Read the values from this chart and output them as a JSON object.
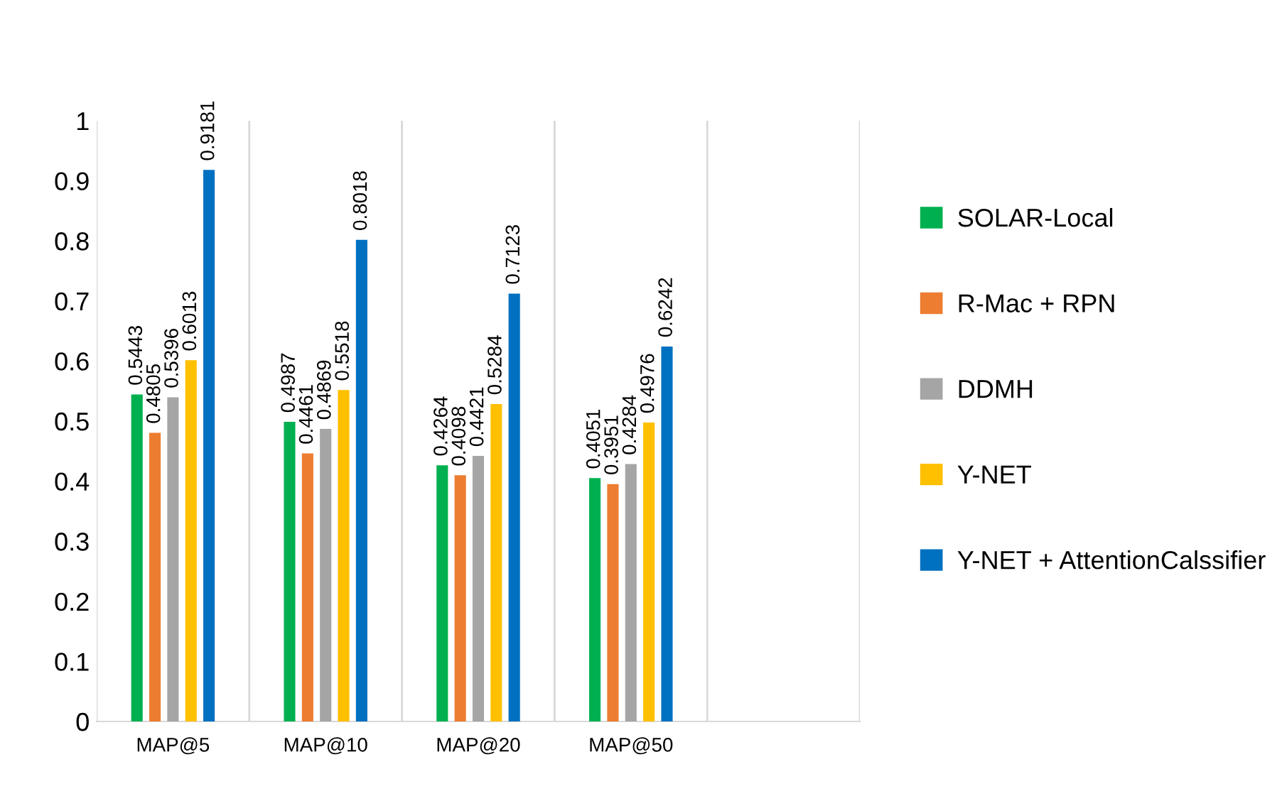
{
  "chart_data": {
    "type": "bar",
    "categories": [
      "MAP@5",
      "MAP@10",
      "MAP@20",
      "MAP@50",
      null
    ],
    "series": [
      {
        "name": "SOLAR-Local",
        "color": "#00b050",
        "values": [
          0.5443,
          0.4987,
          0.4264,
          0.4051,
          null
        ]
      },
      {
        "name": "R-Mac + RPN",
        "color": "#ed7d31",
        "values": [
          0.4805,
          0.4461,
          0.4098,
          0.3951,
          null
        ]
      },
      {
        "name": "DDMH",
        "color": "#a5a5a5",
        "values": [
          0.5396,
          0.4869,
          0.4421,
          0.4284,
          null
        ]
      },
      {
        "name": "Y-NET",
        "color": "#ffc000",
        "values": [
          0.6013,
          0.5518,
          0.5284,
          0.4976,
          null
        ]
      },
      {
        "name": "Y-NET + AttentionCalssifier",
        "color": "#0070c0",
        "values": [
          0.9181,
          0.8018,
          0.7123,
          0.6242,
          null
        ]
      }
    ],
    "ylim": [
      0,
      1
    ],
    "yticks": [
      0,
      0.1,
      0.2,
      0.3,
      0.4,
      0.5,
      0.6,
      0.7,
      0.8,
      0.9,
      1
    ],
    "grid": "x",
    "legend": "right",
    "data_labels": true
  }
}
